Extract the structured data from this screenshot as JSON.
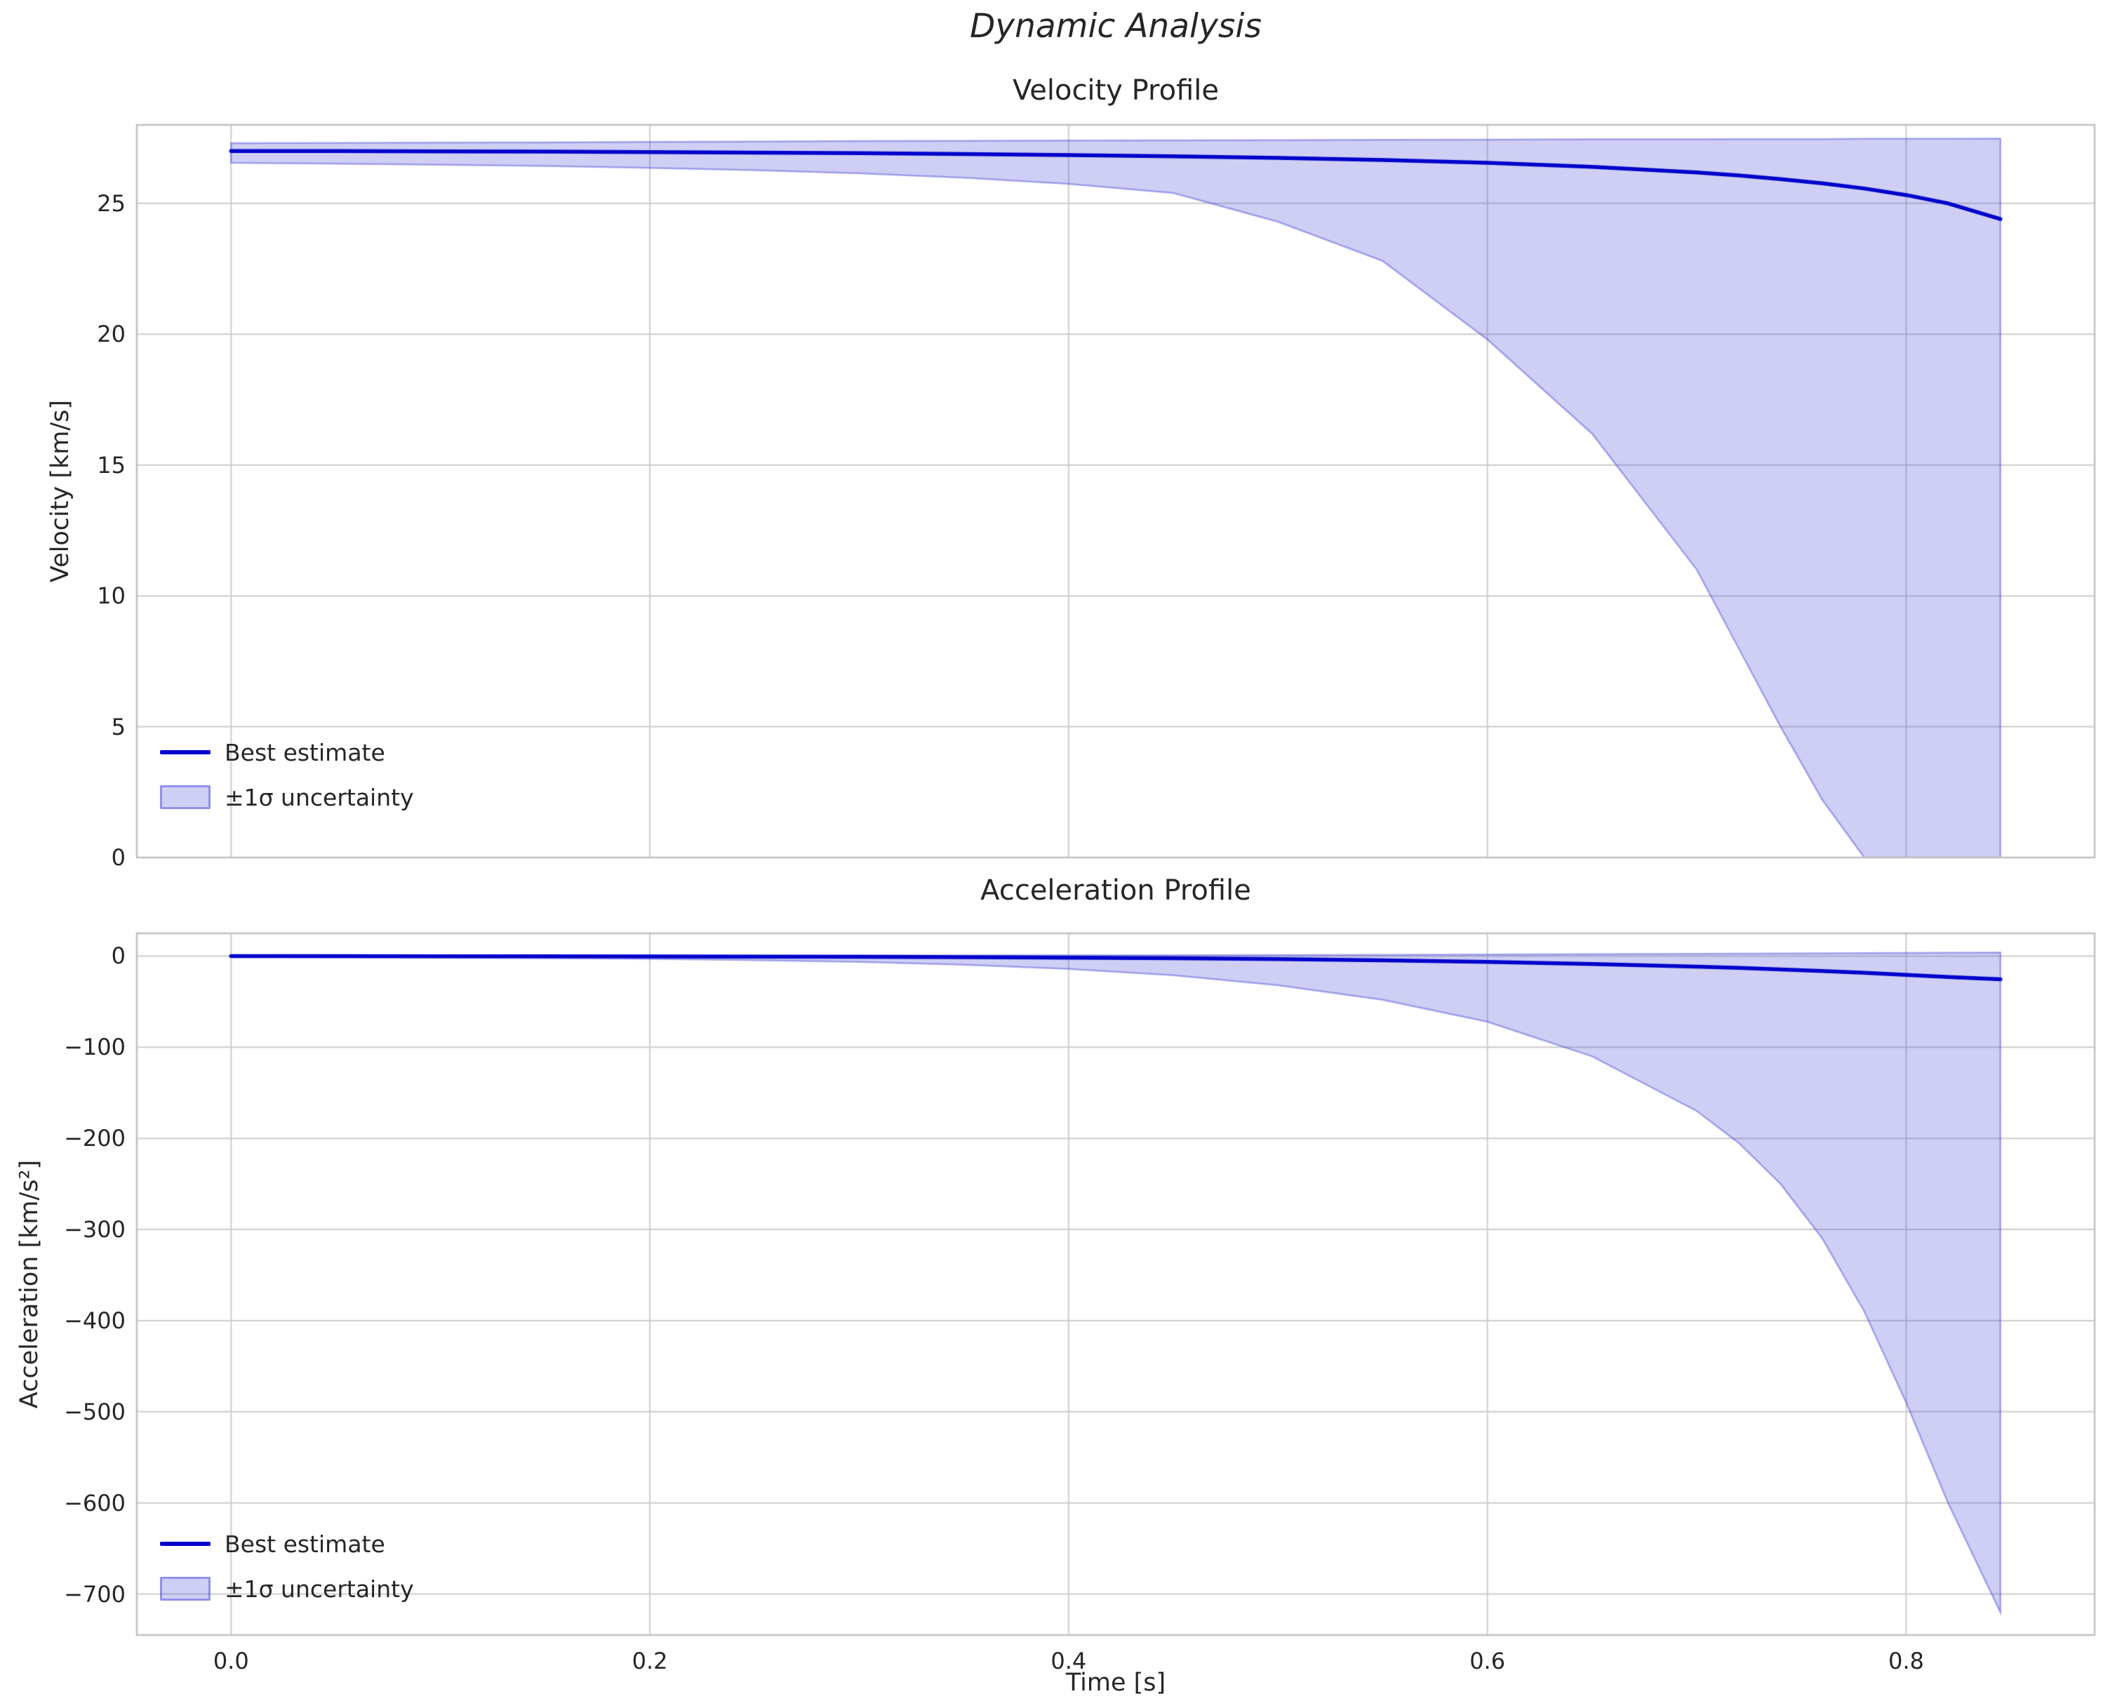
{
  "figure": {
    "suptitle": "Dynamic Analysis"
  },
  "colors": {
    "line": "#0000cc",
    "band_fill": "rgba(70,70,215,0.26)",
    "band_edge": "rgba(70,70,215,0.45)",
    "grid": "#cccccc",
    "spine": "#c0c0c0",
    "text": "#262626"
  },
  "chart_data": [
    {
      "type": "line",
      "title": "Velocity Profile",
      "ylabel": "Velocity [km/s]",
      "xlabel": "",
      "xlim": [
        -0.045,
        0.89
      ],
      "ylim": [
        0,
        28
      ],
      "xticks": [
        0.0,
        0.2,
        0.4,
        0.6,
        0.8
      ],
      "xticklabels": [],
      "yticks": [
        0,
        5,
        10,
        15,
        20,
        25
      ],
      "yticklabels": [
        "0",
        "5",
        "10",
        "15",
        "20",
        "25"
      ],
      "grid": true,
      "legend_position": "lower left",
      "legend": [
        "Best estimate",
        "±1σ uncertainty"
      ],
      "x": [
        0,
        0.05,
        0.1,
        0.15,
        0.2,
        0.25,
        0.3,
        0.35,
        0.4,
        0.45,
        0.5,
        0.55,
        0.6,
        0.65,
        0.7,
        0.72,
        0.74,
        0.76,
        0.78,
        0.8,
        0.82,
        0.845
      ],
      "series": [
        {
          "name": "Best estimate",
          "values": [
            27.0,
            27.0,
            26.99,
            26.98,
            26.96,
            26.94,
            26.92,
            26.89,
            26.85,
            26.8,
            26.74,
            26.66,
            26.55,
            26.4,
            26.18,
            26.07,
            25.93,
            25.77,
            25.57,
            25.32,
            25.0,
            24.4
          ]
        }
      ],
      "band": {
        "name": "±1σ uncertainty",
        "upper": [
          27.3,
          27.31,
          27.32,
          27.33,
          27.35,
          27.36,
          27.38,
          27.39,
          27.4,
          27.41,
          27.42,
          27.43,
          27.44,
          27.45,
          27.45,
          27.46,
          27.46,
          27.46,
          27.47,
          27.47,
          27.47,
          27.48
        ],
        "lower": [
          26.55,
          26.52,
          26.48,
          26.43,
          26.36,
          26.27,
          26.15,
          25.98,
          25.75,
          25.4,
          24.3,
          22.8,
          19.8,
          16.2,
          11.0,
          8.0,
          5.0,
          2.2,
          0,
          0,
          0,
          0
        ]
      }
    },
    {
      "type": "line",
      "title": "Acceleration Profile",
      "ylabel": "Acceleration [km/s²]",
      "xlabel": "Time [s]",
      "xlim": [
        -0.045,
        0.89
      ],
      "ylim": [
        -745,
        25
      ],
      "xticks": [
        0.0,
        0.2,
        0.4,
        0.6,
        0.8
      ],
      "xticklabels": [
        "0.0",
        "0.2",
        "0.4",
        "0.6",
        "0.8"
      ],
      "yticks": [
        0,
        -100,
        -200,
        -300,
        -400,
        -500,
        -600,
        -700
      ],
      "yticklabels": [
        "0",
        "−100",
        "−200",
        "−300",
        "−400",
        "−500",
        "−600",
        "−700"
      ],
      "grid": true,
      "legend_position": "lower left",
      "legend": [
        "Best estimate",
        "±1σ uncertainty"
      ],
      "x": [
        0,
        0.05,
        0.1,
        0.15,
        0.2,
        0.25,
        0.3,
        0.35,
        0.4,
        0.45,
        0.5,
        0.55,
        0.6,
        0.65,
        0.7,
        0.72,
        0.74,
        0.76,
        0.78,
        0.8,
        0.82,
        0.845
      ],
      "series": [
        {
          "name": "Best estimate",
          "values": [
            -0.05,
            -0.1,
            -0.15,
            -0.25,
            -0.4,
            -0.6,
            -0.85,
            -1.2,
            -1.7,
            -2.4,
            -3.3,
            -4.6,
            -6.3,
            -8.6,
            -11.6,
            -13.0,
            -14.6,
            -16.4,
            -18.4,
            -20.6,
            -23.0,
            -25.5
          ]
        }
      ],
      "band": {
        "name": "±1σ uncertainty",
        "upper": [
          0.5,
          0.5,
          0.5,
          0.5,
          0.6,
          0.6,
          0.7,
          0.8,
          0.9,
          1.0,
          1.2,
          1.4,
          1.7,
          2.0,
          2.4,
          2.6,
          2.8,
          3.0,
          3.2,
          3.4,
          3.6,
          3.8
        ],
        "lower": [
          -1.0,
          -1.3,
          -1.7,
          -2.3,
          -3.1,
          -4.4,
          -6.4,
          -9.5,
          -14.0,
          -21.0,
          -32.0,
          -48.0,
          -72.0,
          -110.0,
          -170.0,
          -205.0,
          -250.0,
          -310.0,
          -390.0,
          -490.0,
          -600.0,
          -720.0
        ]
      }
    }
  ]
}
